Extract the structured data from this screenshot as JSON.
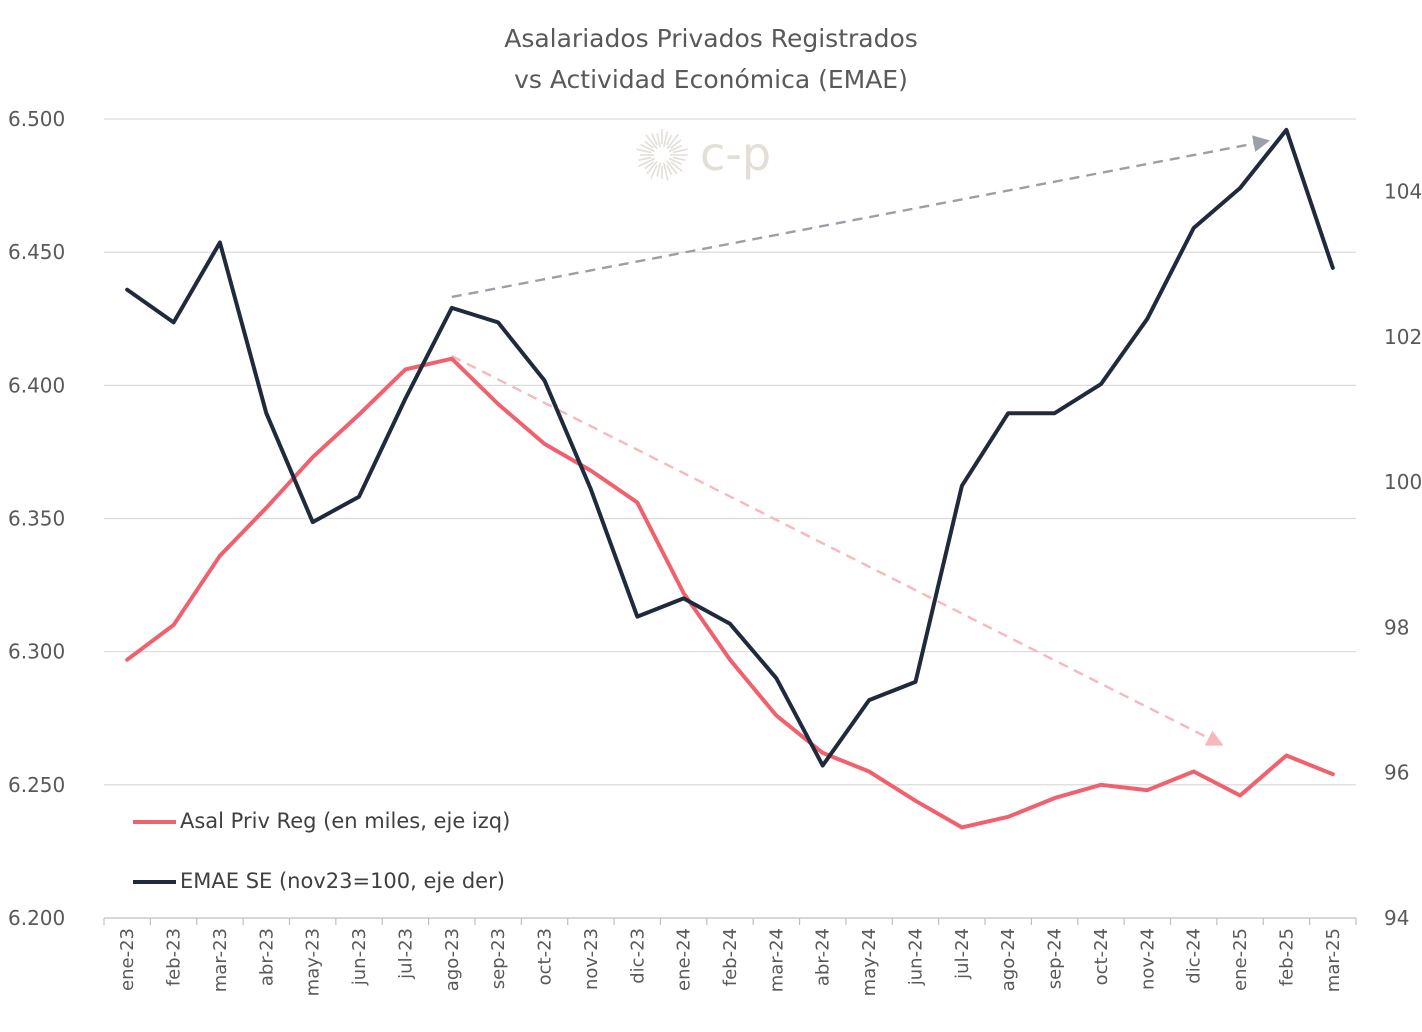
{
  "chart_data": {
    "type": "line",
    "title_line1": "Asalariados Privados Registrados",
    "title_line2": "vs Actividad Económica (EMAE)",
    "watermark": "c-p",
    "categories": [
      "ene-23",
      "feb-23",
      "mar-23",
      "abr-23",
      "may-23",
      "jun-23",
      "jul-23",
      "ago-23",
      "sep-23",
      "oct-23",
      "nov-23",
      "dic-23",
      "ene-24",
      "feb-24",
      "mar-24",
      "abr-24",
      "may-24",
      "jun-24",
      "jul-24",
      "ago-24",
      "sep-24",
      "oct-24",
      "nov-24",
      "dic-24",
      "ene-25",
      "feb-25",
      "mar-25"
    ],
    "y_left": {
      "min": 6200,
      "max": 6500,
      "ticks": [
        6200,
        6250,
        6300,
        6350,
        6400,
        6450,
        6500
      ],
      "tick_labels": [
        "6.200",
        "6.250",
        "6.300",
        "6.350",
        "6.400",
        "6.450",
        "6.500"
      ]
    },
    "y_right": {
      "min": 94,
      "max": 105,
      "ticks": [
        94,
        96,
        98,
        100,
        102,
        104
      ],
      "tick_labels": [
        "94",
        "96",
        "98",
        "100",
        "102",
        "104"
      ]
    },
    "grid": true,
    "legend_position": "bottom-left",
    "series": [
      {
        "name": "Asal Priv Reg (en miles, eje izq)",
        "axis": "left",
        "color": "#f0616d",
        "values": [
          6297,
          6310,
          6336,
          6354,
          6373,
          6389,
          6406,
          6410,
          6393,
          6378,
          6368,
          6356,
          6322,
          6297,
          6276,
          6262,
          6255,
          6244,
          6234,
          6238,
          6245,
          6250,
          6248,
          6255,
          6246,
          6261,
          6254
        ]
      },
      {
        "name": "EMAE SE (nov23=100, eje der)",
        "axis": "right",
        "color": "#1f2a3c",
        "values": [
          102.65,
          102.2,
          103.3,
          100.95,
          99.45,
          99.8,
          101.15,
          102.4,
          102.2,
          101.4,
          99.9,
          98.15,
          98.4,
          98.05,
          97.3,
          96.1,
          97.0,
          97.25,
          99.95,
          100.95,
          100.95,
          101.35,
          102.25,
          103.5,
          104.05,
          104.85,
          102.95
        ]
      }
    ],
    "annotations": [
      {
        "type": "trend-arrow",
        "color": "#9aa0a6",
        "from": {
          "x": "ago-23",
          "axis": "right",
          "y": 102.55
        },
        "to": {
          "x": "feb-25",
          "axis": "right",
          "y": 104.7
        }
      },
      {
        "type": "trend-arrow",
        "color": "#f7b7bd",
        "from": {
          "x": "ago-23",
          "axis": "left",
          "y": 6411
        },
        "to": {
          "x": "ene-25",
          "axis": "left",
          "y": 6265
        }
      }
    ]
  }
}
